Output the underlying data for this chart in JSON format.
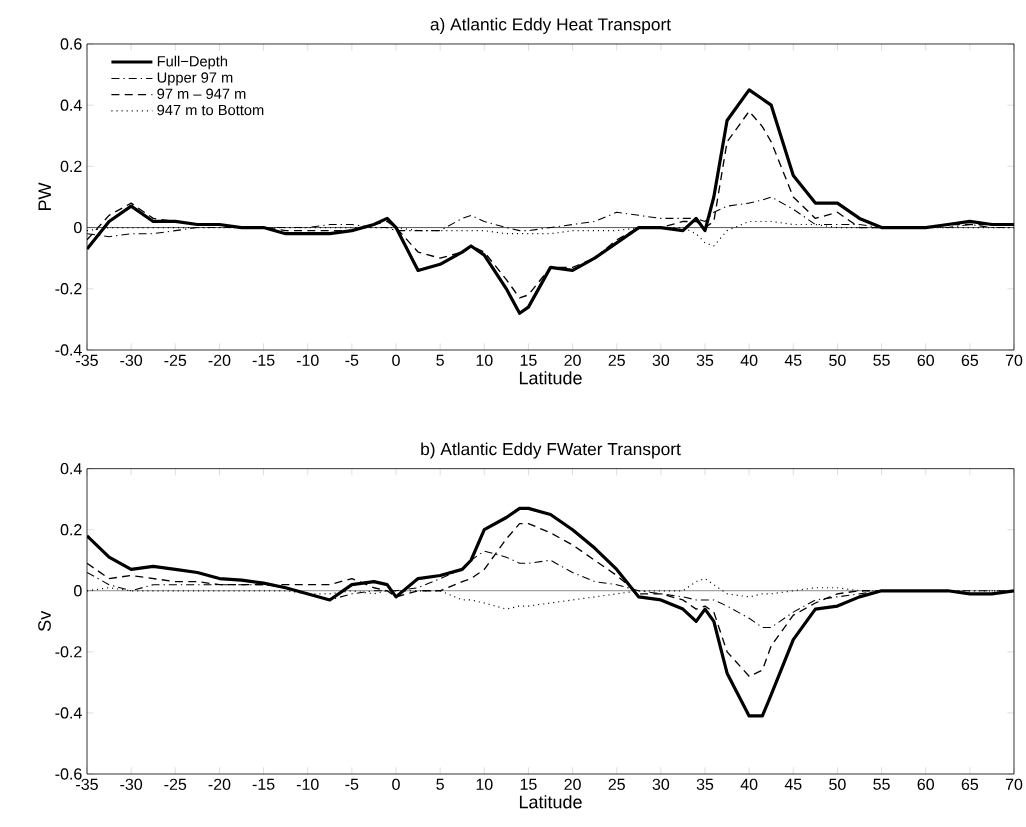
{
  "chart_data": [
    {
      "type": "line",
      "title": "a) Atlantic Eddy Heat Transport",
      "xlabel": "Latitude",
      "ylabel": "PW",
      "x": [
        -35,
        -32.5,
        -30,
        -27.5,
        -25,
        -22.5,
        -20,
        -17.5,
        -15,
        -12.5,
        -10,
        -7.5,
        -5,
        -2.5,
        -1,
        0,
        2.5,
        5,
        7.5,
        8.5,
        10,
        12.5,
        14,
        15,
        17.5,
        20,
        22.5,
        25,
        27.5,
        30,
        32.5,
        34,
        35,
        36,
        37.5,
        40,
        41.5,
        42.5,
        45,
        47.5,
        50,
        52.5,
        55,
        57.5,
        60,
        62.5,
        65,
        67.5,
        70
      ],
      "series": [
        {
          "name": "Full−Depth",
          "color": "#000000",
          "line_style": "solid",
          "values": [
            -0.07,
            0.02,
            0.07,
            0.02,
            0.02,
            0.01,
            0.01,
            0,
            0,
            -0.02,
            -0.02,
            -0.02,
            -0.01,
            0.01,
            0.03,
            0,
            -0.14,
            -0.12,
            -0.08,
            -0.06,
            -0.09,
            -0.2,
            -0.28,
            -0.26,
            -0.13,
            -0.14,
            -0.1,
            -0.05,
            0,
            0,
            -0.01,
            0.03,
            -0.01,
            0.1,
            0.35,
            0.45,
            0.42,
            0.4,
            0.17,
            0.08,
            0.08,
            0.03,
            0,
            0,
            0,
            0.01,
            0.02,
            0.01,
            0.01
          ]
        },
        {
          "name": "Upper 97 m",
          "color": "#000000",
          "line_style": "dashdot",
          "values": [
            -0.02,
            -0.03,
            -0.02,
            -0.02,
            -0.01,
            0,
            0,
            0,
            0,
            0,
            0,
            0.01,
            0.01,
            0,
            0,
            -0.01,
            -0.01,
            -0.01,
            0.03,
            0.04,
            0.02,
            0,
            -0.01,
            -0.01,
            0,
            0.01,
            0.02,
            0.05,
            0.04,
            0.03,
            0.03,
            0.03,
            0.02,
            0.05,
            0.07,
            0.08,
            0.09,
            0.1,
            0.06,
            0.01,
            0.01,
            0.01,
            0,
            0,
            0,
            0,
            0.01,
            0,
            0
          ]
        },
        {
          "name": "97 m – 947 m",
          "color": "#000000",
          "line_style": "dashed",
          "values": [
            -0.04,
            0.04,
            0.08,
            0.03,
            0.02,
            0.01,
            0.01,
            0,
            0,
            -0.01,
            -0.01,
            -0.01,
            -0.01,
            0.01,
            0.02,
            0,
            -0.08,
            -0.1,
            -0.08,
            -0.06,
            -0.08,
            -0.17,
            -0.23,
            -0.22,
            -0.13,
            -0.13,
            -0.1,
            -0.04,
            0,
            0,
            0.02,
            0.02,
            0,
            0.02,
            0.28,
            0.38,
            0.33,
            0.28,
            0.1,
            0.03,
            0.05,
            0,
            0,
            0,
            0,
            0.01,
            0.01,
            0.01,
            0.01
          ]
        },
        {
          "name": "947 m to Bottom",
          "color": "#000000",
          "line_style": "dotted",
          "values": [
            -0.01,
            0,
            0,
            0,
            0,
            0,
            0,
            0,
            0,
            0,
            0,
            0,
            0,
            0,
            0,
            0,
            -0.01,
            -0.01,
            -0.01,
            -0.01,
            -0.01,
            -0.02,
            -0.02,
            -0.02,
            -0.02,
            -0.01,
            -0.01,
            -0.01,
            0,
            0,
            0,
            -0.02,
            -0.05,
            -0.06,
            -0.01,
            0.02,
            0.02,
            0.02,
            0.01,
            0.01,
            0,
            0,
            0,
            0,
            0,
            0,
            0,
            0,
            0
          ]
        }
      ],
      "xlim": [
        -35,
        70
      ],
      "ylim": [
        -0.4,
        0.6
      ],
      "xticks": [
        -35,
        -30,
        -25,
        -20,
        -15,
        -10,
        -5,
        0,
        5,
        10,
        15,
        20,
        25,
        30,
        35,
        40,
        45,
        50,
        55,
        60,
        65,
        70
      ],
      "yticks": [
        -0.4,
        -0.2,
        0,
        0.2,
        0.4,
        0.6
      ],
      "ref_lines": [
        {
          "axis": "y",
          "value": 0
        }
      ],
      "legend": "top left"
    },
    {
      "type": "line",
      "title": "b) Atlantic Eddy FWater Transport",
      "xlabel": "Latitude",
      "ylabel": "Sv",
      "x": [
        -35,
        -32.5,
        -30,
        -27.5,
        -25,
        -22.5,
        -20,
        -17.5,
        -15,
        -12.5,
        -10,
        -7.5,
        -5,
        -2.5,
        -1,
        0,
        2.5,
        5,
        7.5,
        8.5,
        10,
        12.5,
        14,
        15,
        17.5,
        20,
        22.5,
        25,
        27.5,
        30,
        32.5,
        34,
        35,
        36,
        37.5,
        40,
        41.5,
        42.5,
        45,
        47.5,
        50,
        52.5,
        55,
        57.5,
        60,
        62.5,
        65,
        67.5,
        70
      ],
      "series": [
        {
          "color": "#000000",
          "line_style": "solid",
          "values": [
            0.18,
            0.11,
            0.07,
            0.08,
            0.07,
            0.06,
            0.04,
            0.035,
            0.025,
            0.01,
            -0.01,
            -0.03,
            0.02,
            0.03,
            0.02,
            -0.02,
            0.04,
            0.05,
            0.07,
            0.1,
            0.2,
            0.24,
            0.27,
            0.27,
            0.25,
            0.2,
            0.14,
            0.07,
            -0.02,
            -0.03,
            -0.06,
            -0.1,
            -0.06,
            -0.1,
            -0.27,
            -0.41,
            -0.41,
            -0.34,
            -0.16,
            -0.06,
            -0.05,
            -0.02,
            0,
            0,
            0,
            0,
            -0.01,
            -0.01,
            0
          ]
        },
        {
          "color": "#000000",
          "line_style": "dashdot",
          "values": [
            0.06,
            0.02,
            0,
            0.02,
            0.02,
            0.02,
            0.02,
            0.02,
            0.02,
            0.01,
            -0.01,
            -0.03,
            -0.01,
            0,
            0,
            0,
            0.01,
            0.04,
            0.07,
            0.1,
            0.13,
            0.11,
            0.09,
            0.09,
            0.1,
            0.06,
            0.03,
            0.02,
            0,
            -0.01,
            -0.02,
            -0.03,
            -0.03,
            -0.03,
            -0.05,
            -0.09,
            -0.12,
            -0.12,
            -0.07,
            -0.03,
            -0.02,
            -0.01,
            0,
            0,
            0,
            0,
            0,
            0,
            0
          ]
        },
        {
          "color": "#000000",
          "line_style": "dashed",
          "values": [
            0.09,
            0.04,
            0.05,
            0.04,
            0.03,
            0.03,
            0.02,
            0.02,
            0.02,
            0.02,
            0.02,
            0.02,
            0.04,
            0.01,
            0,
            -0.02,
            0,
            0,
            0.03,
            0.04,
            0.07,
            0.17,
            0.22,
            0.22,
            0.19,
            0.15,
            0.1,
            0.05,
            -0.01,
            -0.01,
            -0.03,
            -0.06,
            -0.05,
            -0.07,
            -0.2,
            -0.28,
            -0.26,
            -0.18,
            -0.08,
            -0.04,
            -0.01,
            0,
            0,
            0,
            0,
            0,
            -0.01,
            -0.01,
            0
          ]
        },
        {
          "color": "#000000",
          "line_style": "dotted",
          "values": [
            0,
            0.01,
            0,
            0,
            0,
            0,
            0,
            0,
            0,
            0,
            -0.01,
            -0.01,
            0,
            -0.01,
            0,
            0,
            0,
            0,
            -0.03,
            -0.03,
            -0.04,
            -0.06,
            -0.05,
            -0.05,
            -0.04,
            -0.03,
            -0.02,
            -0.01,
            0,
            0,
            0,
            0.03,
            0.04,
            0.02,
            -0.01,
            -0.02,
            -0.01,
            -0.01,
            0,
            0.01,
            0.01,
            0,
            0,
            0,
            0,
            0,
            0,
            0,
            0
          ]
        }
      ],
      "xlim": [
        -35,
        70
      ],
      "ylim": [
        -0.6,
        0.4
      ],
      "xticks": [
        -35,
        -30,
        -25,
        -20,
        -15,
        -10,
        -5,
        0,
        5,
        10,
        15,
        20,
        25,
        30,
        35,
        40,
        45,
        50,
        55,
        60,
        65,
        70
      ],
      "yticks": [
        -0.6,
        -0.4,
        -0.2,
        0,
        0.2,
        0.4
      ],
      "ref_lines": [
        {
          "axis": "y",
          "value": 0
        }
      ]
    }
  ]
}
